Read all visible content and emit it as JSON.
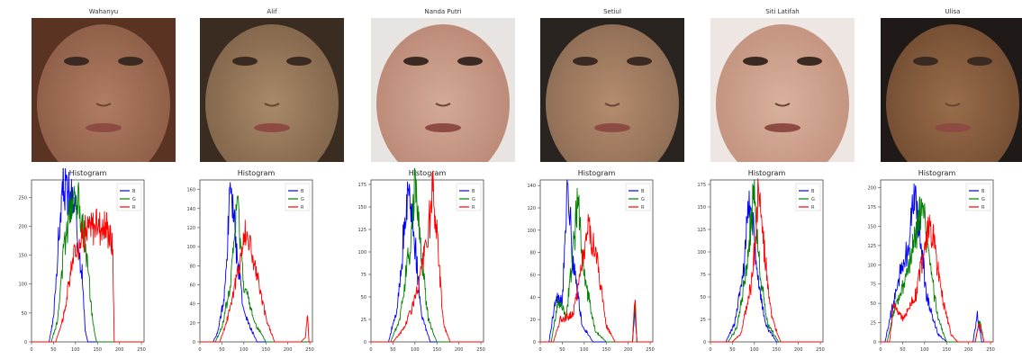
{
  "panels": [
    {
      "name": "Wahanyu"
    },
    {
      "name": "Alif"
    },
    {
      "name": "Nanda Putri"
    },
    {
      "name": "Setiul"
    },
    {
      "name": "Siti Latifah"
    },
    {
      "name": "Ulisa"
    }
  ],
  "colors": {
    "B": "#0000ff",
    "G": "#008000",
    "R": "#ff0000"
  },
  "chart_data": [
    {
      "type": "line",
      "title": "Histogram",
      "xlim": [
        0,
        256
      ],
      "ylim": [
        0,
        280
      ],
      "xticks": [
        0,
        50,
        100,
        150,
        200,
        250
      ],
      "yticks": [
        0,
        50,
        100,
        150,
        200,
        250
      ],
      "legend": [
        "B",
        "G",
        "R"
      ],
      "legend_position": "top-right",
      "series": [
        {
          "name": "B",
          "peaks": [
            [
              40,
              0
            ],
            [
              50,
              40
            ],
            [
              60,
              160
            ],
            [
              72,
              272
            ],
            [
              85,
              255
            ],
            [
              100,
              225
            ],
            [
              115,
              120
            ],
            [
              122,
              20
            ],
            [
              128,
              0
            ]
          ]
        },
        {
          "name": "G",
          "peaks": [
            [
              45,
              0
            ],
            [
              60,
              40
            ],
            [
              75,
              170
            ],
            [
              90,
              250
            ],
            [
              105,
              255
            ],
            [
              120,
              190
            ],
            [
              140,
              30
            ],
            [
              148,
              0
            ]
          ]
        },
        {
          "name": "R",
          "peaks": [
            [
              55,
              0
            ],
            [
              75,
              50
            ],
            [
              95,
              150
            ],
            [
              120,
              190
            ],
            [
              150,
              205
            ],
            [
              175,
              195
            ],
            [
              185,
              160
            ],
            [
              188,
              0
            ]
          ]
        }
      ]
    },
    {
      "type": "line",
      "title": "Histogram",
      "xlim": [
        0,
        256
      ],
      "ylim": [
        0,
        170
      ],
      "xticks": [
        0,
        50,
        100,
        150,
        200,
        250
      ],
      "yticks": [
        0,
        20,
        40,
        60,
        80,
        100,
        120,
        140,
        160
      ],
      "legend": [
        "B",
        "G",
        "R"
      ],
      "legend_position": "top-right",
      "series": [
        {
          "name": "B",
          "peaks": [
            [
              30,
              0
            ],
            [
              40,
              10
            ],
            [
              55,
              45
            ],
            [
              68,
              150
            ],
            [
              72,
              160
            ],
            [
              85,
              90
            ],
            [
              100,
              30
            ],
            [
              130,
              0
            ]
          ]
        },
        {
          "name": "G",
          "peaks": [
            [
              35,
              0
            ],
            [
              50,
              15
            ],
            [
              70,
              60
            ],
            [
              85,
              150
            ],
            [
              100,
              60
            ],
            [
              125,
              20
            ],
            [
              150,
              0
            ]
          ]
        },
        {
          "name": "R",
          "peaks": [
            [
              45,
              0
            ],
            [
              60,
              20
            ],
            [
              85,
              70
            ],
            [
              105,
              120
            ],
            [
              125,
              80
            ],
            [
              150,
              25
            ],
            [
              170,
              0
            ],
            [
              230,
              0
            ],
            [
              240,
              5
            ],
            [
              245,
              30
            ],
            [
              248,
              0
            ]
          ]
        }
      ]
    },
    {
      "type": "line",
      "title": "Histogram",
      "xlim": [
        0,
        256
      ],
      "ylim": [
        0,
        180
      ],
      "xticks": [
        0,
        50,
        100,
        150,
        200,
        250
      ],
      "yticks": [
        0,
        25,
        50,
        75,
        100,
        125,
        150,
        175
      ],
      "legend": [
        "B",
        "G",
        "R"
      ],
      "legend_position": "top-right",
      "series": [
        {
          "name": "B",
          "peaks": [
            [
              40,
              0
            ],
            [
              60,
              40
            ],
            [
              80,
              150
            ],
            [
              85,
              170
            ],
            [
              100,
              110
            ],
            [
              115,
              30
            ],
            [
              135,
              0
            ]
          ]
        },
        {
          "name": "G",
          "peaks": [
            [
              45,
              0
            ],
            [
              65,
              25
            ],
            [
              90,
              110
            ],
            [
              100,
              178
            ],
            [
              110,
              120
            ],
            [
              130,
              25
            ],
            [
              150,
              0
            ]
          ]
        },
        {
          "name": "R",
          "peaks": [
            [
              50,
              0
            ],
            [
              75,
              15
            ],
            [
              105,
              55
            ],
            [
              130,
              120
            ],
            [
              140,
              165
            ],
            [
              150,
              120
            ],
            [
              165,
              20
            ],
            [
              180,
              0
            ]
          ]
        }
      ]
    },
    {
      "type": "line",
      "title": "Histogram",
      "xlim": [
        0,
        256
      ],
      "ylim": [
        0,
        145
      ],
      "xticks": [
        0,
        50,
        100,
        150,
        200,
        250
      ],
      "yticks": [
        0,
        20,
        40,
        60,
        80,
        100,
        120,
        140
      ],
      "legend": [
        "B",
        "G",
        "R"
      ],
      "legend_position": "top-right",
      "series": [
        {
          "name": "B",
          "peaks": [
            [
              20,
              0
            ],
            [
              35,
              40
            ],
            [
              50,
              35
            ],
            [
              62,
              140
            ],
            [
              75,
              70
            ],
            [
              95,
              15
            ],
            [
              120,
              0
            ],
            [
              210,
              0
            ],
            [
              215,
              30
            ],
            [
              220,
              0
            ]
          ]
        },
        {
          "name": "G",
          "peaks": [
            [
              25,
              0
            ],
            [
              40,
              35
            ],
            [
              60,
              25
            ],
            [
              85,
              125
            ],
            [
              100,
              60
            ],
            [
              125,
              10
            ],
            [
              150,
              0
            ],
            [
              210,
              0
            ],
            [
              215,
              35
            ],
            [
              220,
              0
            ]
          ]
        },
        {
          "name": "R",
          "peaks": [
            [
              30,
              0
            ],
            [
              45,
              20
            ],
            [
              75,
              25
            ],
            [
              110,
              105
            ],
            [
              130,
              70
            ],
            [
              150,
              15
            ],
            [
              170,
              0
            ],
            [
              210,
              0
            ],
            [
              215,
              40
            ],
            [
              220,
              0
            ]
          ]
        }
      ]
    },
    {
      "type": "line",
      "title": "Histogram",
      "xlim": [
        0,
        256
      ],
      "ylim": [
        0,
        180
      ],
      "xticks": [
        0,
        50,
        100,
        150,
        200,
        250
      ],
      "yticks": [
        0,
        25,
        50,
        75,
        100,
        125,
        150,
        175
      ],
      "legend": [
        "B",
        "G",
        "R"
      ],
      "legend_position": "top-right",
      "series": [
        {
          "name": "B",
          "peaks": [
            [
              35,
              0
            ],
            [
              55,
              20
            ],
            [
              75,
              80
            ],
            [
              90,
              165
            ],
            [
              105,
              80
            ],
            [
              125,
              20
            ],
            [
              150,
              0
            ]
          ]
        },
        {
          "name": "G",
          "peaks": [
            [
              40,
              0
            ],
            [
              60,
              15
            ],
            [
              85,
              90
            ],
            [
              98,
              170
            ],
            [
              110,
              90
            ],
            [
              130,
              20
            ],
            [
              155,
              0
            ]
          ]
        },
        {
          "name": "R",
          "peaks": [
            [
              50,
              0
            ],
            [
              70,
              10
            ],
            [
              95,
              70
            ],
            [
              110,
              170
            ],
            [
              120,
              110
            ],
            [
              140,
              25
            ],
            [
              160,
              0
            ]
          ]
        }
      ]
    },
    {
      "type": "line",
      "title": "Histogram",
      "xlim": [
        0,
        256
      ],
      "ylim": [
        0,
        210
      ],
      "xticks": [
        0,
        50,
        100,
        150,
        200,
        250
      ],
      "yticks": [
        0,
        25,
        50,
        75,
        100,
        125,
        150,
        175,
        200
      ],
      "legend": [
        "B",
        "G",
        "R"
      ],
      "legend_position": "top-right",
      "series": [
        {
          "name": "B",
          "peaks": [
            [
              10,
              0
            ],
            [
              25,
              40
            ],
            [
              45,
              90
            ],
            [
              65,
              130
            ],
            [
              75,
              195
            ],
            [
              90,
              140
            ],
            [
              105,
              60
            ],
            [
              130,
              10
            ],
            [
              150,
              0
            ],
            [
              210,
              0
            ],
            [
              220,
              35
            ],
            [
              230,
              0
            ]
          ]
        },
        {
          "name": "G",
          "peaks": [
            [
              15,
              0
            ],
            [
              30,
              40
            ],
            [
              50,
              70
            ],
            [
              70,
              110
            ],
            [
              95,
              190
            ],
            [
              110,
              110
            ],
            [
              130,
              30
            ],
            [
              150,
              0
            ],
            [
              215,
              0
            ],
            [
              225,
              30
            ],
            [
              235,
              0
            ]
          ]
        },
        {
          "name": "R",
          "peaks": [
            [
              20,
              0
            ],
            [
              30,
              50
            ],
            [
              50,
              30
            ],
            [
              80,
              60
            ],
            [
              110,
              160
            ],
            [
              120,
              130
            ],
            [
              140,
              60
            ],
            [
              160,
              10
            ],
            [
              175,
              0
            ],
            [
              215,
              0
            ],
            [
              225,
              25
            ],
            [
              235,
              0
            ]
          ]
        }
      ]
    }
  ]
}
